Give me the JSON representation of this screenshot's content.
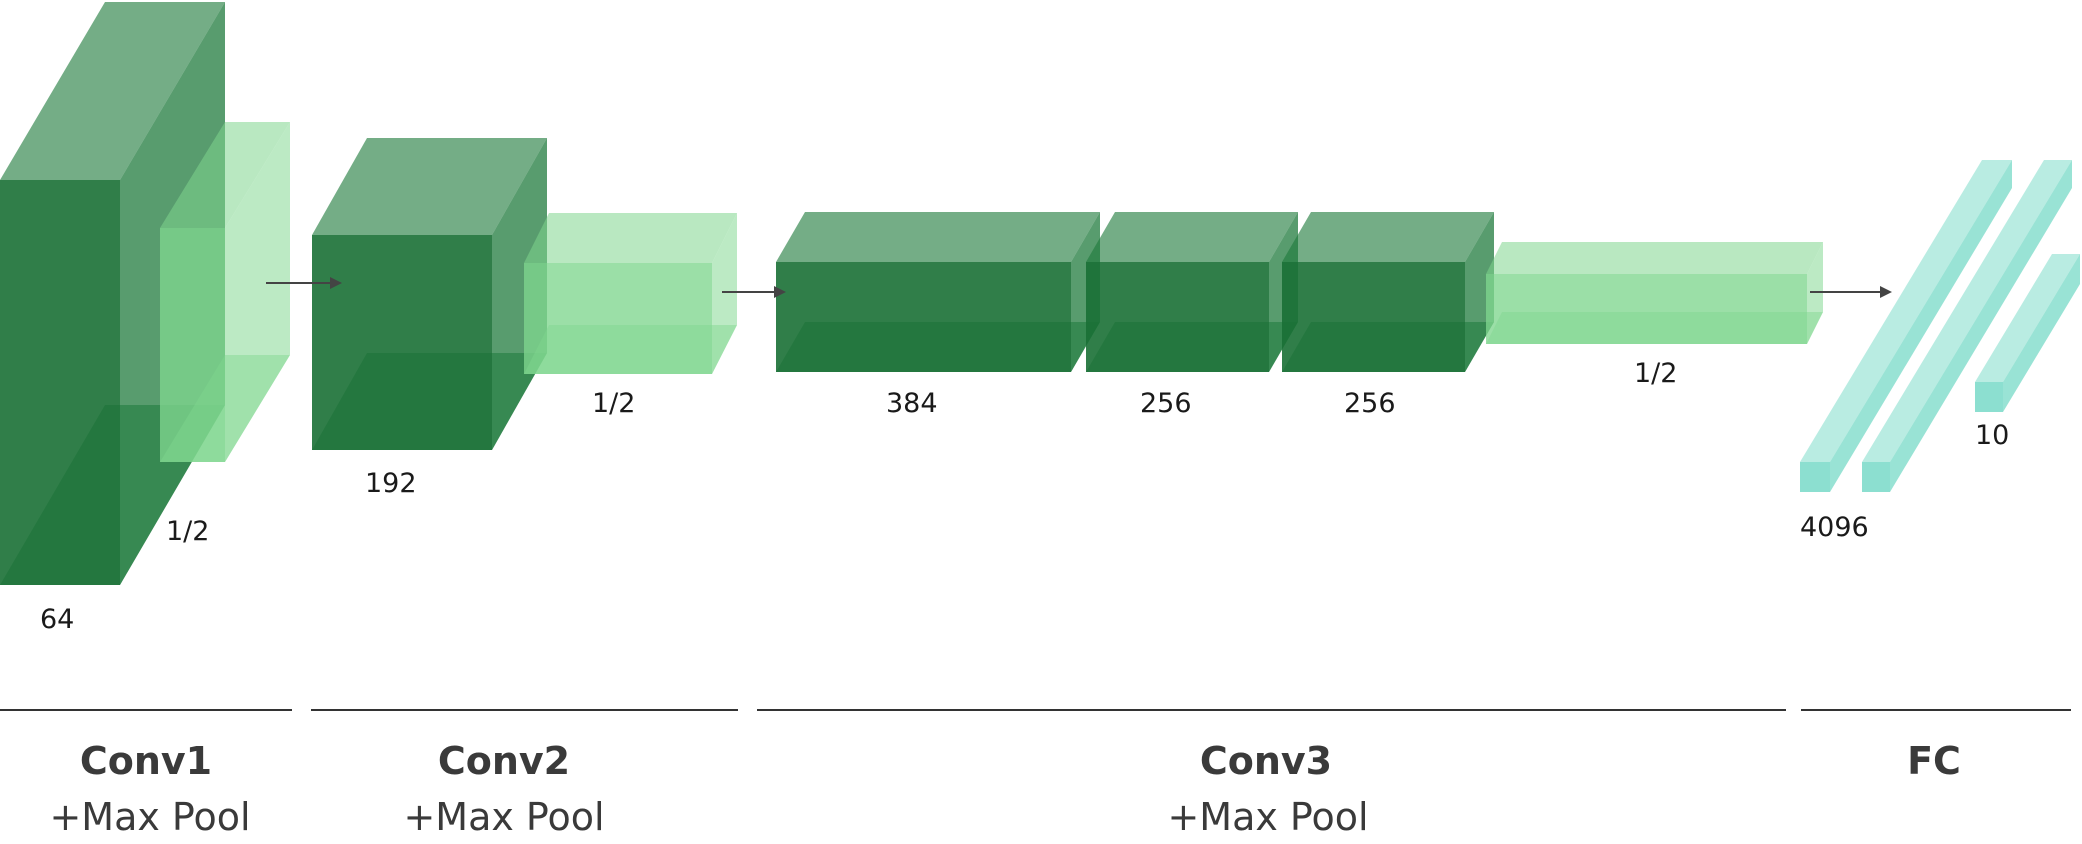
{
  "colors": {
    "conv_dark": "#1e7a3c",
    "pool_light": "#7fd68e",
    "fc_teal": "#7fdccb",
    "arrow": "#444444",
    "divider": "#333333",
    "text": "#3a3a3a"
  },
  "layers": {
    "conv1_depth": "64",
    "pool1_ratio": "1/2",
    "conv2_depth": "192",
    "pool2_ratio": "1/2",
    "conv3a_depth": "384",
    "conv3b_depth": "256",
    "conv3c_depth": "256",
    "pool3_ratio": "1/2",
    "fc1_units": "4096",
    "fc3_units": "10"
  },
  "stages": [
    {
      "title": "Conv1",
      "subtitle": "+Max Pool"
    },
    {
      "title": "Conv2",
      "subtitle": "+Max Pool"
    },
    {
      "title": "Conv3",
      "subtitle": "+Max Pool"
    },
    {
      "title": "FC",
      "subtitle": ""
    }
  ]
}
